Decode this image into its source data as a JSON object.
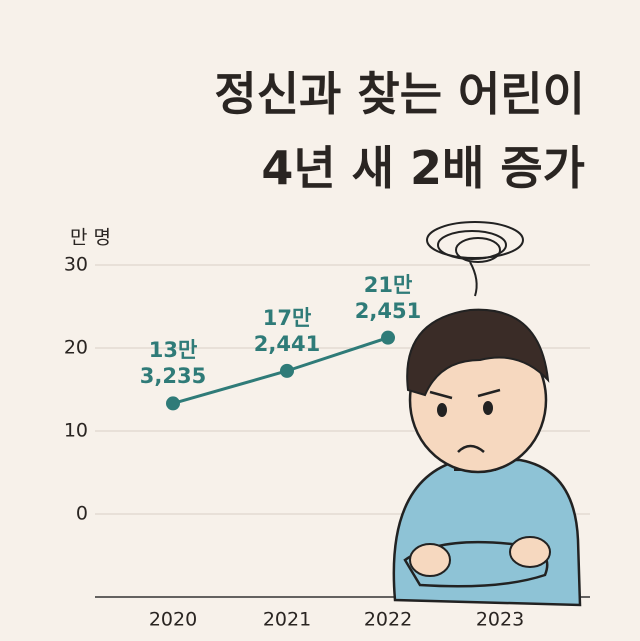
{
  "chart_data": {
    "type": "line",
    "title": [
      "정신과 찾는 어린이",
      "4년 새 2배 증가"
    ],
    "y_label": "만 명",
    "categories": [
      "2020",
      "2021",
      "2022",
      "2023"
    ],
    "series": [
      {
        "name": "정신과 찾는 어린이",
        "color": "#2f7b78",
        "values": [
          13.3235,
          17.2441,
          21.2451,
          null
        ],
        "value_labels": [
          "13만\n3,235",
          "17만\n2,441",
          "21만\n2,451",
          null
        ]
      }
    ],
    "ylim": [
      -10,
      30
    ],
    "yticks": [
      0,
      10,
      20,
      30
    ],
    "grid": true
  }
}
